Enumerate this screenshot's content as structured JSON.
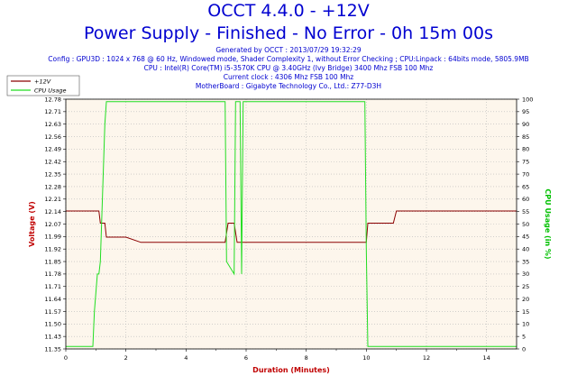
{
  "header": {
    "title_line1": "OCCT 4.4.0 - +12V",
    "title_line2": "Power Supply - Finished - No Error - 0h 15m 00s",
    "generated": "Generated by OCCT : 2013/07/29 19:32:29",
    "config": "Config : GPU3D : 1024 x 768 @ 60 Hz, Windowed mode, Shader Complexity 1, without Error Checking ; CPU:Linpack : 64bits mode, 5805.9MB",
    "cpu": "CPU : Intel(R) Core(TM) i5-3570K CPU @ 3.40GHz (Ivy Bridge) 3400 Mhz FSB 100 Mhz",
    "clock": "Current clock : 4306 Mhz FSB 100 Mhz",
    "motherboard": "MotherBoard : Gigabyte Technology Co., Ltd.: Z77-D3H"
  },
  "colors": {
    "voltage": "#8b0000",
    "cpu": "#22dd22",
    "plot_bg": "#fdf6ec",
    "grid": "#b8b8b8",
    "title": "#0000d0",
    "left_axis_title": "#c00000",
    "right_axis_title": "#00c000",
    "x_axis_title": "#c00000"
  },
  "chart_data": {
    "type": "line",
    "grid": true,
    "legend_position": "top-left",
    "x_axis": {
      "label": "Duration (Minutes)",
      "range": [
        0,
        15
      ],
      "ticks": [
        "0",
        "2",
        "4",
        "6",
        "8",
        "10",
        "12",
        "14"
      ]
    },
    "y_left": {
      "label": "Voltage (V)",
      "range": [
        11.35,
        12.78
      ],
      "ticks": [
        "11.35",
        "11.43",
        "11.50",
        "11.57",
        "11.64",
        "11.71",
        "11.78",
        "11.85",
        "11.92",
        "11.99",
        "12.07",
        "12.14",
        "12.21",
        "12.28",
        "12.35",
        "12.42",
        "12.49",
        "12.56",
        "12.63",
        "12.71",
        "12.78"
      ]
    },
    "y_right": {
      "label": "CPU Usage (in %)",
      "range": [
        0,
        100
      ],
      "ticks": [
        "0",
        "5",
        "10",
        "15",
        "20",
        "25",
        "30",
        "35",
        "40",
        "45",
        "50",
        "55",
        "60",
        "65",
        "70",
        "75",
        "80",
        "85",
        "90",
        "95",
        "100"
      ]
    },
    "series": [
      {
        "name": "+12V",
        "axis": "left",
        "points": [
          [
            0,
            12.14
          ],
          [
            0.2,
            12.14
          ],
          [
            0.4,
            12.14
          ],
          [
            0.6,
            12.14
          ],
          [
            0.8,
            12.14
          ],
          [
            1.0,
            12.14
          ],
          [
            1.1,
            12.14
          ],
          [
            1.15,
            12.07
          ],
          [
            1.3,
            12.07
          ],
          [
            1.35,
            11.99
          ],
          [
            2.0,
            11.99
          ],
          [
            2.5,
            11.96
          ],
          [
            3.0,
            11.96
          ],
          [
            4.0,
            11.96
          ],
          [
            5.0,
            11.96
          ],
          [
            5.3,
            11.96
          ],
          [
            5.4,
            12.07
          ],
          [
            5.6,
            12.07
          ],
          [
            5.7,
            11.96
          ],
          [
            6.5,
            11.96
          ],
          [
            7.5,
            11.96
          ],
          [
            8.5,
            11.96
          ],
          [
            9.5,
            11.96
          ],
          [
            10.0,
            11.96
          ],
          [
            10.05,
            12.07
          ],
          [
            10.9,
            12.07
          ],
          [
            11.0,
            12.14
          ],
          [
            12.0,
            12.14
          ],
          [
            13.0,
            12.14
          ],
          [
            14.0,
            12.14
          ],
          [
            15.0,
            12.14
          ]
        ]
      },
      {
        "name": "CPU Usage",
        "axis": "right",
        "points": [
          [
            0,
            1
          ],
          [
            0.5,
            1
          ],
          [
            0.9,
            1
          ],
          [
            0.95,
            15
          ],
          [
            1.05,
            30
          ],
          [
            1.1,
            30
          ],
          [
            1.15,
            35
          ],
          [
            1.3,
            90
          ],
          [
            1.35,
            99
          ],
          [
            2.0,
            99
          ],
          [
            3.0,
            99
          ],
          [
            4.0,
            99
          ],
          [
            5.0,
            99
          ],
          [
            5.3,
            99
          ],
          [
            5.35,
            35
          ],
          [
            5.6,
            30
          ],
          [
            5.65,
            99
          ],
          [
            5.8,
            99
          ],
          [
            5.85,
            30
          ],
          [
            5.9,
            99
          ],
          [
            6.5,
            99
          ],
          [
            7.5,
            99
          ],
          [
            8.5,
            99
          ],
          [
            9.5,
            99
          ],
          [
            9.95,
            99
          ],
          [
            10.0,
            40
          ],
          [
            10.05,
            1
          ],
          [
            11.0,
            1
          ],
          [
            12.0,
            1
          ],
          [
            13.0,
            1
          ],
          [
            14.0,
            1
          ],
          [
            15.0,
            1
          ]
        ]
      }
    ]
  }
}
